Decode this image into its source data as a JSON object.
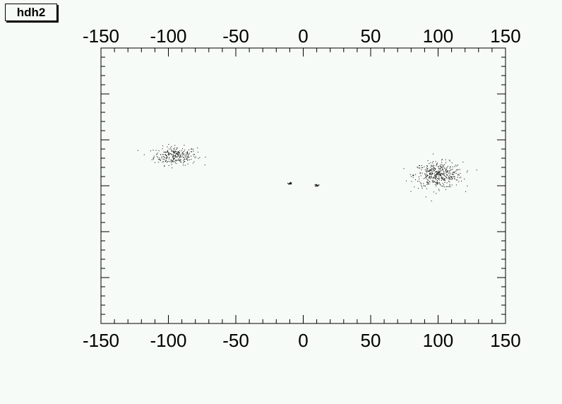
{
  "title": "hdh2",
  "chart_data": {
    "type": "scatter",
    "title": "hdh2",
    "xlabel": "",
    "ylabel": "",
    "xlim": [
      -150,
      150
    ],
    "ylim": [
      -150,
      150
    ],
    "x_tick_labels": [
      "-150",
      "-100",
      "-50",
      "0",
      "50",
      "100",
      "150"
    ],
    "x_ticks": [
      -150,
      -100,
      -50,
      0,
      50,
      100,
      150
    ],
    "top_axis_labels": true,
    "y_tick_labels_shown": false,
    "grid": false,
    "clusters": [
      {
        "center": [
          -95,
          33
        ],
        "spread": [
          8,
          5
        ],
        "points": 260
      },
      {
        "center": [
          100,
          12
        ],
        "spread": [
          9,
          7
        ],
        "points": 420
      },
      {
        "center": [
          -10,
          3
        ],
        "spread": [
          0.6,
          0.6
        ],
        "points": 25
      },
      {
        "center": [
          10,
          1
        ],
        "spread": [
          0.6,
          0.6
        ],
        "points": 25
      }
    ],
    "marker_color": "#000000",
    "background_color": "#f6fbf7"
  }
}
